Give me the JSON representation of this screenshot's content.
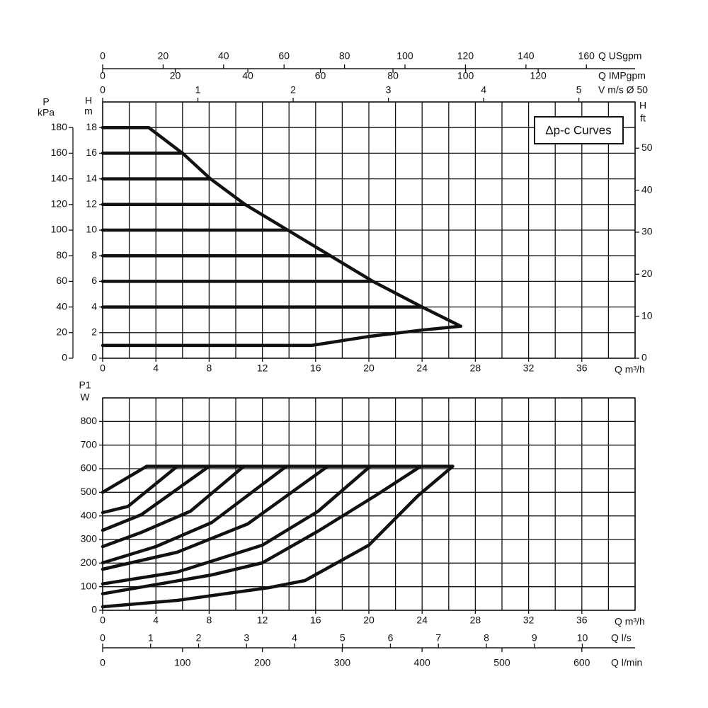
{
  "chart_data": [
    {
      "type": "line",
      "annotation": "Δp-c Curves",
      "line_color": "#111111",
      "xlabel": "Q m³/h",
      "ylabel": [
        "H",
        "m"
      ],
      "xlim": [
        0,
        40
      ],
      "xticks": [
        0,
        4,
        8,
        12,
        16,
        20,
        24,
        28,
        32,
        36
      ],
      "xgrid": [
        0,
        2,
        4,
        6,
        8,
        10,
        12,
        14,
        16,
        18,
        20,
        22,
        24,
        26,
        28,
        30,
        32,
        34,
        36,
        38,
        40
      ],
      "ylim": [
        0,
        20
      ],
      "yticks": [
        0,
        2,
        4,
        6,
        8,
        10,
        12,
        14,
        16,
        18
      ],
      "ygrid": [
        0,
        2,
        4,
        6,
        8,
        10,
        12,
        14,
        16,
        18,
        20
      ],
      "extra_axes": [
        {
          "position": "top",
          "label": [
            "Q USgpm"
          ],
          "lim": [
            0,
            176.1
          ],
          "ticks": [
            0,
            20,
            40,
            60,
            80,
            100,
            120,
            140,
            160
          ]
        },
        {
          "position": "top",
          "label": [
            "Q IMPgpm"
          ],
          "lim": [
            0,
            146.7
          ],
          "ticks": [
            0,
            20,
            40,
            60,
            80,
            100,
            120
          ]
        },
        {
          "position": "top",
          "label": [
            "V m/s Ø 50"
          ],
          "lim": [
            0,
            5.59
          ],
          "ticks": [
            0,
            1,
            2,
            3,
            4,
            5
          ]
        },
        {
          "position": "left",
          "label": [
            "P",
            "kPa"
          ],
          "lim": [
            0,
            200
          ],
          "ticks": [
            0,
            20,
            40,
            60,
            80,
            100,
            120,
            140,
            160,
            180
          ]
        },
        {
          "position": "right",
          "label": [
            "H",
            "ft"
          ],
          "lim": [
            0,
            61
          ],
          "ticks": [
            0,
            10,
            20,
            30,
            40,
            50
          ]
        }
      ],
      "series": [
        {
          "x": [
            0,
            3.46
          ],
          "values": [
            18,
            18
          ]
        },
        {
          "x": [
            0,
            6
          ],
          "values": [
            16,
            16
          ]
        },
        {
          "x": [
            0,
            8.1
          ],
          "values": [
            14,
            14
          ]
        },
        {
          "x": [
            0,
            10.7
          ],
          "values": [
            12,
            12
          ]
        },
        {
          "x": [
            0,
            13.9
          ],
          "values": [
            10,
            10
          ]
        },
        {
          "x": [
            0,
            17.1
          ],
          "values": [
            8,
            8
          ]
        },
        {
          "x": [
            0,
            20.3
          ],
          "values": [
            6,
            6
          ]
        },
        {
          "x": [
            0,
            24
          ],
          "values": [
            4,
            4
          ]
        },
        {
          "x": [
            3.46,
            6,
            8.1,
            10.7,
            13.9,
            17.1,
            20.3,
            24,
            26.9
          ],
          "values": [
            18,
            16,
            14,
            12,
            10,
            8,
            6,
            4,
            2.5
          ]
        },
        {
          "x": [
            26.9,
            24,
            20,
            15.7,
            0
          ],
          "values": [
            2.5,
            2.2,
            1.7,
            1,
            1
          ]
        }
      ]
    },
    {
      "type": "line",
      "line_color": "#111111",
      "xlabel": "Q m³/h",
      "ylabel": [
        "P1",
        "W"
      ],
      "xlim": [
        0,
        40
      ],
      "xticks": [
        0,
        4,
        8,
        12,
        16,
        20,
        24,
        28,
        32,
        36
      ],
      "xgrid": [
        0,
        2,
        4,
        6,
        8,
        10,
        12,
        14,
        16,
        18,
        20,
        22,
        24,
        26,
        28,
        30,
        32,
        34,
        36,
        38,
        40
      ],
      "ylim": [
        0,
        900
      ],
      "yticks": [
        0,
        100,
        200,
        300,
        400,
        500,
        600,
        700,
        800
      ],
      "ygrid": [
        0,
        100,
        200,
        300,
        400,
        500,
        600,
        700,
        800,
        900
      ],
      "extra_axes": [
        {
          "position": "bottom",
          "label": [
            "Q l/s"
          ],
          "lim": [
            0,
            11.1
          ],
          "ticks": [
            0,
            1,
            2,
            3,
            4,
            5,
            6,
            7,
            8,
            9,
            10
          ]
        },
        {
          "position": "bottom",
          "label": [
            "Q l/min"
          ],
          "lim": [
            0,
            666.7
          ],
          "ticks": [
            0,
            100,
            200,
            300,
            400,
            500,
            600
          ]
        }
      ],
      "series": [
        {
          "x": [
            3.3,
            26.3
          ],
          "values": [
            610,
            610
          ]
        },
        {
          "x": [
            0,
            3.3
          ],
          "values": [
            500,
            610
          ]
        },
        {
          "x": [
            0,
            1.9,
            2.9,
            5.6
          ],
          "values": [
            414,
            440,
            486,
            610
          ]
        },
        {
          "x": [
            0,
            2.9,
            8
          ],
          "values": [
            339,
            405,
            610
          ]
        },
        {
          "x": [
            0,
            2.9,
            6.6,
            10.6
          ],
          "values": [
            270,
            330,
            420,
            610
          ]
        },
        {
          "x": [
            0,
            4,
            8.2,
            13.8
          ],
          "values": [
            201,
            270,
            372,
            610
          ]
        },
        {
          "x": [
            0,
            5.6,
            10.9,
            16.9
          ],
          "values": [
            174,
            246,
            366,
            610
          ]
        },
        {
          "x": [
            0,
            5.6,
            12,
            16.2,
            20.1
          ],
          "values": [
            112,
            162,
            276,
            420,
            610
          ]
        },
        {
          "x": [
            0,
            8.2,
            12,
            16.2,
            20.5,
            23.9
          ],
          "values": [
            70,
            150,
            201,
            336,
            486,
            610
          ]
        },
        {
          "x": [
            0,
            5.6,
            12.5,
            15.2,
            20,
            23.7,
            26.3
          ],
          "values": [
            15,
            42,
            96,
            126,
            276,
            486,
            610
          ]
        }
      ]
    }
  ]
}
